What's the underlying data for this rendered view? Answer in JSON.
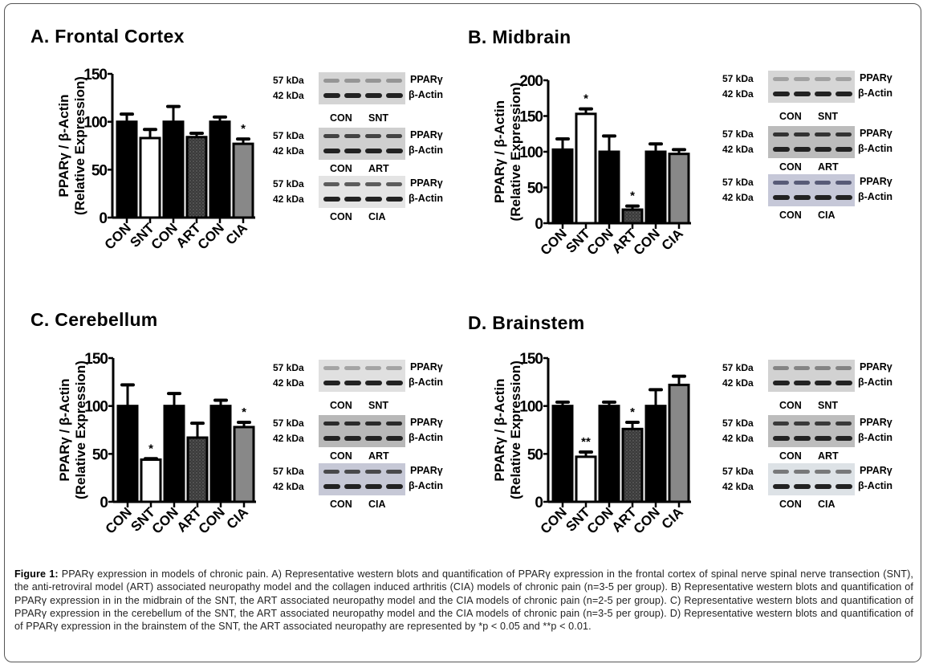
{
  "figure": {
    "caption": {
      "label": "Figure 1:",
      "text": " PPARγ expression in models of chronic pain. A) Representative western blots and quantification of PPARγ expression in the frontal cortex of spinal nerve spinal nerve transection (SNT), the anti-retroviral model (ART) associated neuropathy model and the collagen induced arthritis (CIA) models of chronic pain (n=3-5 per group). B) Representative western blots and quantification of PPARγ expression in in the midbrain of the SNT, the ART associated neuropathy model and the CIA models of chronic pain (n=2-5 per group). C) Representative western blots and quantification of PPARγ expression in the cerebellum of the SNT, the ART associated neuropathy model and the CIA models of chronic pain  (n=3-5 per group). D) Representative western blots and quantification of of PPARγ expression in the brainstem of the SNT, the ART associated neuropathy are represented by *p < 0.05 and **p < 0.01."
    },
    "blot_labels": {
      "kda_high": "57 kDa",
      "kda_low": "42 kDa",
      "protein_high": "PPARγ",
      "protein_low": "β-Actin"
    },
    "blot_pairs": [
      {
        "left": "CON",
        "right": "SNT"
      },
      {
        "left": "CON",
        "right": "ART"
      },
      {
        "left": "CON",
        "right": "CIA"
      }
    ],
    "bar_colors": {
      "CON": "#000000",
      "SNT": "#ffffff",
      "ART": "#333333",
      "CIA": "#888888"
    }
  },
  "chart_data": [
    {
      "type": "bar",
      "title": "A. Frontal Cortex",
      "ylabel_line1": "PPARγ / β-Actin",
      "ylabel_line2": "(Relative Expression)",
      "categories": [
        "CON",
        "SNT",
        "CON",
        "ART",
        "CON",
        "CIA"
      ],
      "values": [
        100,
        83,
        100,
        84,
        100,
        77
      ],
      "error_upper": [
        108,
        92,
        116,
        88,
        105,
        82
      ],
      "significance": [
        "",
        "",
        "",
        "",
        "",
        "*"
      ],
      "ylim": [
        0,
        150
      ],
      "yticks": [
        0,
        50,
        100,
        150
      ]
    },
    {
      "type": "bar",
      "title": "B. Midbrain",
      "ylabel_line1": "PPARγ / β-Actin",
      "ylabel_line2": "(Relative Expression)",
      "categories": [
        "CON",
        "SNT",
        "CON",
        "ART",
        "CON",
        "CIA"
      ],
      "values": [
        103,
        153,
        100,
        19,
        100,
        97
      ],
      "error_upper": [
        118,
        160,
        122,
        24,
        111,
        103
      ],
      "significance": [
        "",
        "*",
        "",
        "*",
        "",
        ""
      ],
      "ylim": [
        0,
        200
      ],
      "yticks": [
        0,
        50,
        100,
        150,
        200
      ]
    },
    {
      "type": "bar",
      "title": "C. Cerebellum",
      "ylabel_line1": "PPARγ / β-Actin",
      "ylabel_line2": "(Relative Expression)",
      "categories": [
        "CON",
        "SNT",
        "CON",
        "ART",
        "CON",
        "CIA"
      ],
      "values": [
        100,
        44,
        100,
        67,
        100,
        78
      ],
      "error_upper": [
        122,
        45,
        113,
        82,
        106,
        83
      ],
      "significance": [
        "",
        "*",
        "",
        "",
        "",
        "*"
      ],
      "ylim": [
        0,
        150
      ],
      "yticks": [
        0,
        50,
        100,
        150
      ]
    },
    {
      "type": "bar",
      "title": "D. Brainstem",
      "ylabel_line1": "PPARγ / β-Actin",
      "ylabel_line2": "(Relative Expression)",
      "categories": [
        "CON",
        "SNT",
        "CON",
        "ART",
        "CON",
        "CIA"
      ],
      "values": [
        100,
        47,
        100,
        76,
        100,
        122
      ],
      "error_upper": [
        104,
        52,
        104,
        83,
        117,
        131
      ],
      "significance": [
        "",
        "**",
        "",
        "*",
        "",
        ""
      ],
      "ylim": [
        0,
        150
      ],
      "yticks": [
        0,
        50,
        100,
        150
      ]
    }
  ]
}
